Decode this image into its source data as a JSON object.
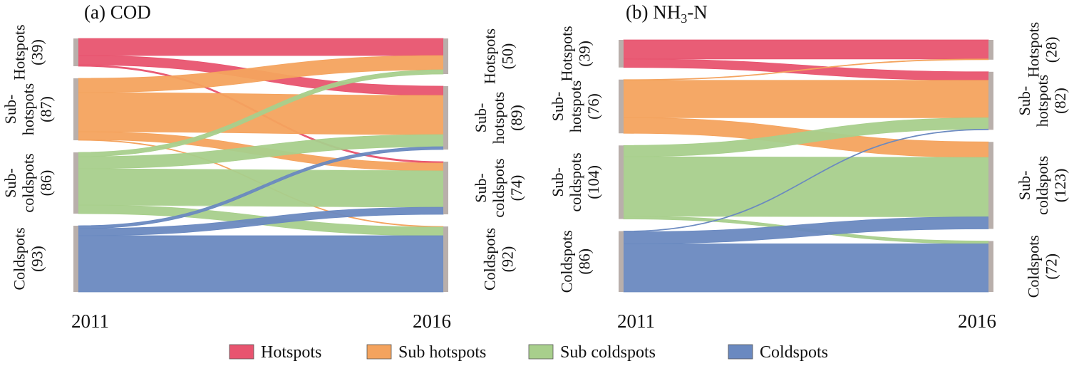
{
  "colors": {
    "Hotspots": "#e8546f",
    "Sub hotspots": "#f4a35e",
    "Sub coldspots": "#a8cf8c",
    "Coldspots": "#6a89c0",
    "node_bar": "#b9afab"
  },
  "legend": {
    "items": [
      {
        "name": "Hotspots",
        "color": "#e8546f"
      },
      {
        "name": "Sub hotspots",
        "color": "#f4a35e"
      },
      {
        "name": "Sub coldspots",
        "color": "#a8cf8c"
      },
      {
        "name": "Coldspots",
        "color": "#6a89c0"
      }
    ]
  },
  "chart_data": [
    {
      "type": "sankey",
      "title": "(a) COD",
      "source_year": "2011",
      "target_year": "2016",
      "source_nodes": [
        {
          "name": "Hotspots",
          "label_lines": [
            "Hotspots",
            "(39)"
          ],
          "value": 39
        },
        {
          "name": "Sub hotspots",
          "label_lines": [
            "Sub-",
            "hotspots",
            "(87)"
          ],
          "value": 87
        },
        {
          "name": "Sub coldspots",
          "label_lines": [
            "Sub-",
            "coldspots",
            "(86)"
          ],
          "value": 86
        },
        {
          "name": "Coldspots",
          "label_lines": [
            "Coldspots",
            "(93)"
          ],
          "value": 93
        }
      ],
      "target_nodes": [
        {
          "name": "Hotspots",
          "label_lines": [
            "Hotspots",
            "(50)"
          ],
          "value": 50
        },
        {
          "name": "Sub hotspots",
          "label_lines": [
            "Sub-",
            "hotspots",
            "(89)"
          ],
          "value": 89
        },
        {
          "name": "Sub coldspots",
          "label_lines": [
            "Sub-",
            "coldspots",
            "(74)"
          ],
          "value": 74
        },
        {
          "name": "Coldspots",
          "label_lines": [
            "Coldspots",
            "(92)"
          ],
          "value": 92
        }
      ],
      "flows": [
        {
          "from": "Hotspots",
          "to": "Hotspots",
          "value": 24
        },
        {
          "from": "Hotspots",
          "to": "Sub hotspots",
          "value": 13
        },
        {
          "from": "Hotspots",
          "to": "Sub coldspots",
          "value": 2
        },
        {
          "from": "Sub hotspots",
          "to": "Hotspots",
          "value": 20
        },
        {
          "from": "Sub hotspots",
          "to": "Sub hotspots",
          "value": 55
        },
        {
          "from": "Sub hotspots",
          "to": "Sub coldspots",
          "value": 11
        },
        {
          "from": "Sub hotspots",
          "to": "Coldspots",
          "value": 1
        },
        {
          "from": "Sub coldspots",
          "to": "Hotspots",
          "value": 6
        },
        {
          "from": "Sub coldspots",
          "to": "Sub hotspots",
          "value": 17
        },
        {
          "from": "Sub coldspots",
          "to": "Sub coldspots",
          "value": 51
        },
        {
          "from": "Sub coldspots",
          "to": "Coldspots",
          "value": 12
        },
        {
          "from": "Coldspots",
          "to": "Sub hotspots",
          "value": 4
        },
        {
          "from": "Coldspots",
          "to": "Sub coldspots",
          "value": 10
        },
        {
          "from": "Coldspots",
          "to": "Coldspots",
          "value": 79
        }
      ]
    },
    {
      "type": "sankey",
      "title_parts": [
        "(b) NH",
        "3",
        "-N"
      ],
      "source_year": "2011",
      "target_year": "2016",
      "source_nodes": [
        {
          "name": "Hotspots",
          "label_lines": [
            "Hotspots",
            "(39)"
          ],
          "value": 39
        },
        {
          "name": "Sub hotspots",
          "label_lines": [
            "Sub-",
            "hotspots",
            "(76)"
          ],
          "value": 76
        },
        {
          "name": "Sub coldspots",
          "label_lines": [
            "Sub-",
            "coldspots",
            "(104)"
          ],
          "value": 104
        },
        {
          "name": "Coldspots",
          "label_lines": [
            "Coldspots",
            "(86)"
          ],
          "value": 86
        }
      ],
      "target_nodes": [
        {
          "name": "Hotspots",
          "label_lines": [
            "Hotspots",
            "(28)"
          ],
          "value": 28
        },
        {
          "name": "Sub hotspots",
          "label_lines": [
            "Sub-",
            "hotspots",
            "(82)"
          ],
          "value": 82
        },
        {
          "name": "Sub coldspots",
          "label_lines": [
            "Sub-",
            "coldspots",
            "(123)"
          ],
          "value": 123
        },
        {
          "name": "Coldspots",
          "label_lines": [
            "Coldspots",
            "(72)"
          ],
          "value": 72
        }
      ],
      "flows": [
        {
          "from": "Hotspots",
          "to": "Hotspots",
          "value": 27
        },
        {
          "from": "Hotspots",
          "to": "Sub hotspots",
          "value": 12
        },
        {
          "from": "Sub hotspots",
          "to": "Hotspots",
          "value": 1
        },
        {
          "from": "Sub hotspots",
          "to": "Sub hotspots",
          "value": 53
        },
        {
          "from": "Sub hotspots",
          "to": "Sub coldspots",
          "value": 22
        },
        {
          "from": "Sub coldspots",
          "to": "Sub hotspots",
          "value": 16
        },
        {
          "from": "Sub coldspots",
          "to": "Sub coldspots",
          "value": 84
        },
        {
          "from": "Sub coldspots",
          "to": "Coldspots",
          "value": 4
        },
        {
          "from": "Coldspots",
          "to": "Sub hotspots",
          "value": 1
        },
        {
          "from": "Coldspots",
          "to": "Sub coldspots",
          "value": 17
        },
        {
          "from": "Coldspots",
          "to": "Coldspots",
          "value": 68
        }
      ]
    }
  ]
}
